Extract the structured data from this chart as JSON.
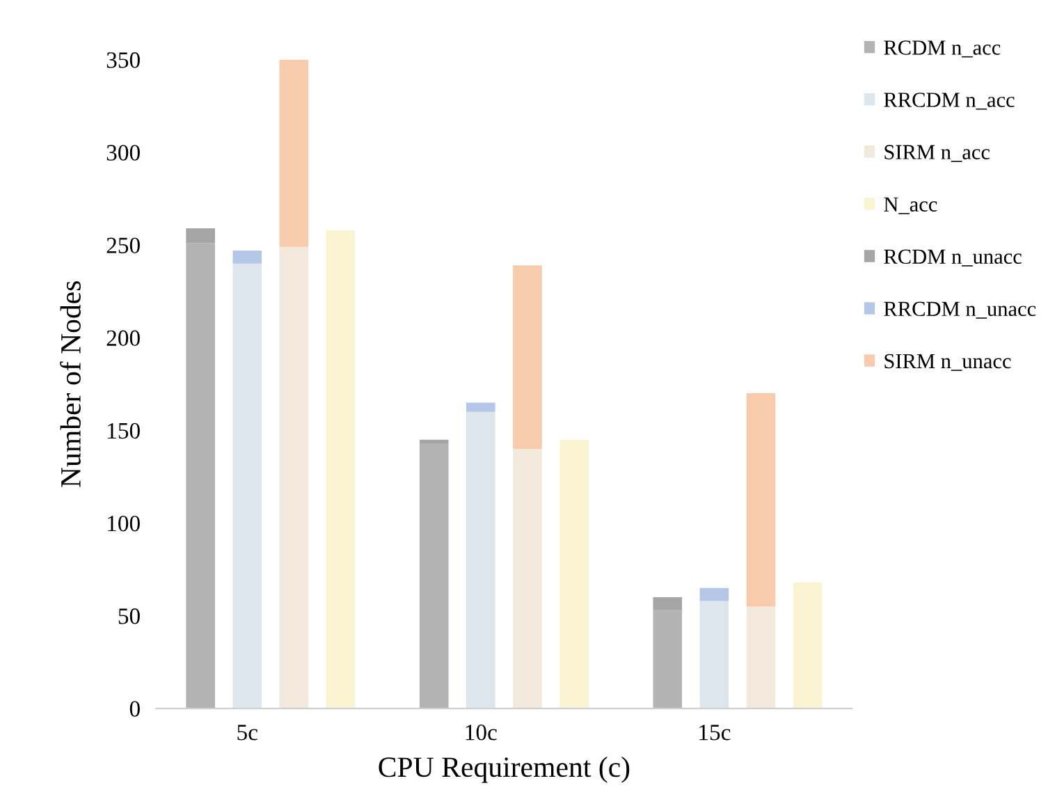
{
  "chart_data": {
    "type": "bar",
    "stacked": true,
    "xlabel": "CPU Requirement (c)",
    "ylabel": "Number of Nodes",
    "categories": [
      null,
      "5c",
      null,
      null,
      null,
      null,
      "10c",
      null,
      null,
      null,
      null,
      "15c",
      null,
      null
    ],
    "ylim": [
      0,
      350
    ],
    "yticks": [
      0,
      50,
      100,
      150,
      200,
      250,
      300,
      350
    ],
    "grid": false,
    "legend": "right",
    "series": [
      {
        "name": "RCDM n_acc",
        "color": "#b3b3b3",
        "values": [
          251,
          null,
          null,
          null,
          null,
          143,
          null,
          null,
          null,
          null,
          53,
          null,
          null,
          null
        ]
      },
      {
        "name": "RRCDM n_acc",
        "color": "#dde6ec",
        "values": [
          null,
          240,
          null,
          null,
          null,
          null,
          160,
          null,
          null,
          null,
          null,
          58,
          null,
          null
        ]
      },
      {
        "name": "SIRM n_acc",
        "color": "#f2e8dc",
        "values": [
          null,
          null,
          249,
          null,
          null,
          null,
          null,
          140,
          null,
          null,
          null,
          null,
          55,
          null
        ]
      },
      {
        "name": "N_acc",
        "color": "#fbf4d3",
        "values": [
          null,
          null,
          null,
          258,
          null,
          null,
          null,
          null,
          145,
          null,
          null,
          null,
          null,
          68
        ]
      },
      {
        "name": "RCDM n_unacc",
        "color": "#a5a5a5",
        "values": [
          8,
          null,
          null,
          null,
          null,
          2,
          null,
          null,
          null,
          null,
          7,
          null,
          null,
          null
        ]
      },
      {
        "name": "RRCDM n_unacc",
        "color": "#b4c7e7",
        "values": [
          null,
          7,
          null,
          null,
          null,
          null,
          5,
          null,
          null,
          null,
          null,
          7,
          null,
          null
        ]
      },
      {
        "name": "SIRM n_unacc",
        "color": "#f8cbad",
        "values": [
          null,
          null,
          101,
          null,
          null,
          null,
          null,
          99,
          null,
          null,
          null,
          null,
          115,
          null
        ]
      }
    ]
  }
}
